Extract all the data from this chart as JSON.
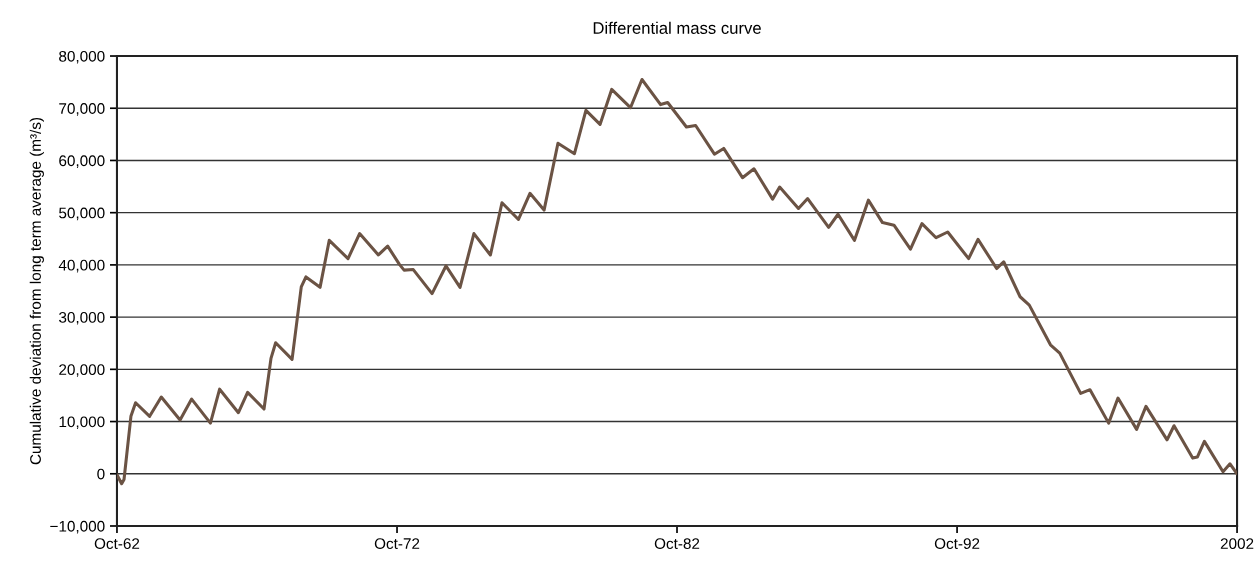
{
  "chart_data": {
    "type": "line",
    "title": "Differential mass curve",
    "ylabel": "Cumulative deviation from long term average (m³/s)",
    "x": [
      "1962-10",
      "1962-12",
      "1963-01",
      "1963-04",
      "1963-06",
      "1963-12",
      "1964-05",
      "1965-01",
      "1965-06",
      "1966-02",
      "1966-06",
      "1967-02",
      "1967-06",
      "1968-01",
      "1968-04",
      "1968-06",
      "1969-01",
      "1969-05",
      "1969-07",
      "1970-01",
      "1970-05",
      "1971-01",
      "1971-06",
      "1972-02",
      "1972-06",
      "1972-11",
      "1973-01",
      "1973-05",
      "1974-01",
      "1974-07",
      "1975-01",
      "1975-07",
      "1976-02",
      "1976-07",
      "1977-02",
      "1977-07",
      "1978-01",
      "1978-07",
      "1979-02",
      "1979-07",
      "1980-01",
      "1980-06",
      "1981-02",
      "1981-07",
      "1982-03",
      "1982-06",
      "1983-02",
      "1983-06",
      "1984-02",
      "1984-06",
      "1985-02",
      "1985-07",
      "1986-03",
      "1986-06",
      "1987-02",
      "1987-06",
      "1988-03",
      "1988-07",
      "1989-02",
      "1989-08",
      "1990-02",
      "1990-07",
      "1991-02",
      "1991-07",
      "1992-01",
      "1992-06",
      "1993-03",
      "1993-07",
      "1994-03",
      "1994-06",
      "1995-01",
      "1995-05",
      "1996-02",
      "1996-06",
      "1997-03",
      "1997-07",
      "1998-03",
      "1998-07",
      "1999-03",
      "1999-07",
      "2000-04",
      "2000-07",
      "2001-03",
      "2001-05",
      "2001-08",
      "2002-04",
      "2002-07",
      "2002-10"
    ],
    "series": [
      {
        "color": "#6b5344",
        "values": [
          -200,
          -1900,
          -1100,
          11000,
          13600,
          11000,
          14700,
          10300,
          14300,
          9700,
          16200,
          11700,
          15600,
          12400,
          22100,
          25100,
          21900,
          35800,
          37700,
          35700,
          44700,
          41200,
          46000,
          41900,
          43600,
          40100,
          39000,
          39100,
          34500,
          39800,
          35700,
          46000,
          41900,
          51900,
          48700,
          53700,
          50500,
          63300,
          61300,
          69600,
          66900,
          73600,
          70100,
          75500,
          70700,
          71100,
          66400,
          66700,
          61200,
          62300,
          56700,
          58400,
          52600,
          54900,
          50800,
          52700,
          47200,
          49700,
          44700,
          52400,
          48100,
          47600,
          43000,
          47900,
          45200,
          46300,
          41200,
          44900,
          39300,
          40600,
          33900,
          32300,
          24700,
          23100,
          15400,
          16100,
          9700,
          14500,
          8500,
          12900,
          6500,
          9200,
          3000,
          3200,
          6200,
          400,
          1900,
          0
        ]
      }
    ],
    "xlim": [
      "1962-10",
      "2002-10"
    ],
    "xticks": [
      {
        "value": "1962-10",
        "label": "Oct-62"
      },
      {
        "value": "1972-10",
        "label": "Oct-72"
      },
      {
        "value": "1982-10",
        "label": "Oct-82"
      },
      {
        "value": "1992-10",
        "label": "Oct-92"
      },
      {
        "value": "2002-10",
        "label": "2002"
      }
    ],
    "ylim": [
      -10000,
      80000
    ],
    "yticks": [
      {
        "value": -10000,
        "label": "−10,000"
      },
      {
        "value": 0,
        "label": "0"
      },
      {
        "value": 10000,
        "label": "10,000"
      },
      {
        "value": 20000,
        "label": "20,000"
      },
      {
        "value": 30000,
        "label": "30,000"
      },
      {
        "value": 40000,
        "label": "40,000"
      },
      {
        "value": 50000,
        "label": "50,000"
      },
      {
        "value": 60000,
        "label": "60,000"
      },
      {
        "value": 70000,
        "label": "70,000"
      },
      {
        "value": 80000,
        "label": "80,000"
      }
    ],
    "grid": "y",
    "line_style": "solid"
  }
}
